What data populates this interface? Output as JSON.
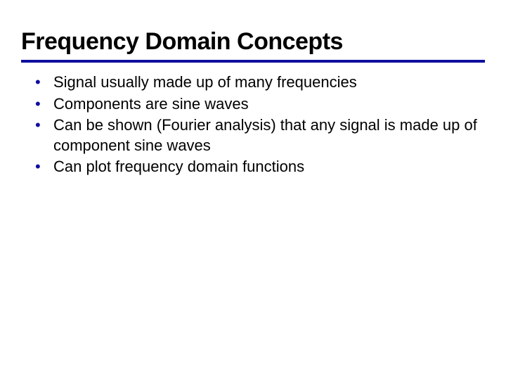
{
  "title": "Frequency Domain Concepts",
  "accent_color": "#0e0e9e",
  "text_color": "#000000",
  "background_color": "#ffffff",
  "title_fontsize": 34,
  "body_fontsize": 22,
  "bullets": [
    {
      "marker": "•",
      "text": "Signal usually made up of many frequencies"
    },
    {
      "marker": "•",
      "text": "Components are sine waves"
    },
    {
      "marker": "•",
      "text": "Can be shown (Fourier analysis) that any signal is made up of component sine waves"
    },
    {
      "marker": "•",
      "text": "Can plot frequency domain functions"
    }
  ]
}
